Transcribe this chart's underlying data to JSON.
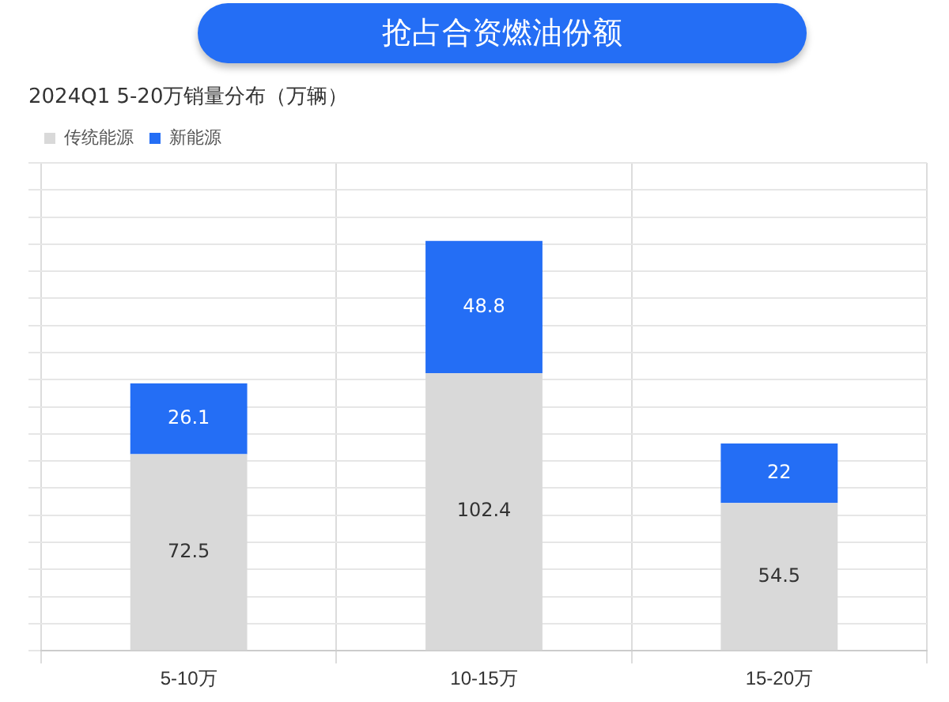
{
  "chart_data": {
    "type": "bar",
    "title": "抢占合资燃油份额",
    "subtitle": "2024Q1 5-20万销量分布（万辆）",
    "categories": [
      "5-10万",
      "10-15万",
      "15-20万"
    ],
    "series": [
      {
        "name": "传统能源",
        "color": "#d9d9d9",
        "values": [
          72.5,
          102.4,
          54.5
        ]
      },
      {
        "name": "新能源",
        "color": "#246ef5",
        "values": [
          26.1,
          48.8,
          22
        ]
      }
    ],
    "stacked": true,
    "data_labels": true,
    "legend": "top left",
    "grid": true,
    "tick_labels": "x",
    "ylim": [
      0,
      180
    ],
    "yticks": [
      {
        "value": 0,
        "label": null
      },
      {
        "value": 10,
        "label": null
      },
      {
        "value": 20,
        "label": null
      },
      {
        "value": 30,
        "label": null
      },
      {
        "value": 40,
        "label": null
      },
      {
        "value": 50,
        "label": null
      },
      {
        "value": 60,
        "label": null
      },
      {
        "value": 70,
        "label": null
      },
      {
        "value": 80,
        "label": null
      },
      {
        "value": 90,
        "label": null
      },
      {
        "value": 100,
        "label": null
      },
      {
        "value": 110,
        "label": null
      },
      {
        "value": 120,
        "label": null
      },
      {
        "value": 130,
        "label": null
      },
      {
        "value": 140,
        "label": null
      },
      {
        "value": 150,
        "label": null
      },
      {
        "value": 160,
        "label": null
      },
      {
        "value": 170,
        "label": null
      },
      {
        "value": 180,
        "label": null
      }
    ]
  }
}
